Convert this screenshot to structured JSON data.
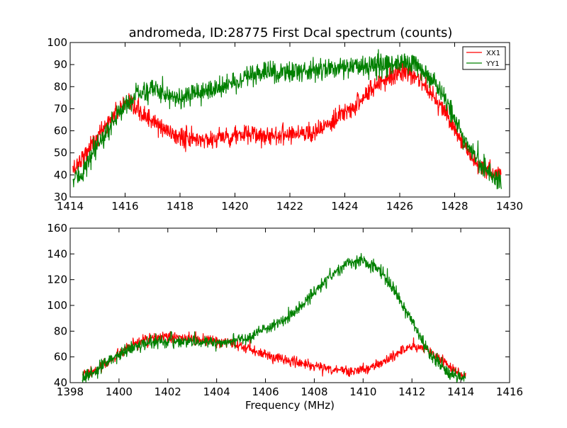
{
  "figure": {
    "title": "andromeda, ID:28775 First Dcal spectrum (counts)"
  },
  "chart_data": [
    {
      "type": "line",
      "title": "andromeda, ID:28775 First Dcal spectrum (counts)",
      "xlabel": "",
      "ylabel": "",
      "xlim": [
        1414,
        1430
      ],
      "ylim": [
        30,
        100
      ],
      "xticks": [
        "1414",
        "1416",
        "1418",
        "1420",
        "1422",
        "1424",
        "1426",
        "1428",
        "1430"
      ],
      "yticks": [
        "30",
        "40",
        "50",
        "60",
        "70",
        "80",
        "90",
        "100"
      ],
      "legend": {
        "position": "top-right",
        "entries": [
          "XX1",
          "YY1"
        ]
      },
      "grid": false,
      "series": [
        {
          "name": "XX1",
          "color": "#ff0000",
          "noise": 2.2,
          "x": [
            1414.1,
            1414.5,
            1415.0,
            1415.5,
            1416.0,
            1416.5,
            1417.0,
            1417.5,
            1418.0,
            1418.5,
            1419.0,
            1419.5,
            1420.0,
            1420.5,
            1421.0,
            1421.5,
            1422.0,
            1422.5,
            1423.0,
            1423.5,
            1424.0,
            1424.5,
            1425.0,
            1425.5,
            1426.0,
            1426.5,
            1427.0,
            1427.5,
            1428.0,
            1428.5,
            1429.0,
            1429.4,
            1429.7
          ],
          "y": [
            42,
            49,
            57,
            66,
            72,
            69,
            64,
            60,
            57,
            56,
            56,
            57,
            58,
            58,
            58,
            58,
            59,
            59,
            60,
            63,
            68,
            73,
            79,
            84,
            87,
            85,
            80,
            72,
            60,
            50,
            43,
            40,
            40
          ]
        },
        {
          "name": "YY1",
          "color": "#008000",
          "noise": 2.4,
          "x": [
            1414.1,
            1414.5,
            1415.0,
            1415.5,
            1416.0,
            1416.5,
            1417.0,
            1417.5,
            1418.0,
            1418.5,
            1419.0,
            1419.5,
            1420.0,
            1420.5,
            1421.0,
            1421.5,
            1422.0,
            1422.5,
            1423.0,
            1423.5,
            1424.0,
            1424.5,
            1425.0,
            1425.5,
            1426.0,
            1426.5,
            1427.0,
            1427.5,
            1428.0,
            1428.5,
            1429.0,
            1429.4,
            1429.7
          ],
          "y": [
            37,
            42,
            53,
            63,
            72,
            77,
            79,
            77,
            75,
            76,
            78,
            80,
            82,
            84,
            86,
            87,
            87,
            87,
            88,
            88,
            89,
            89,
            90,
            90,
            90,
            90,
            86,
            78,
            65,
            53,
            44,
            39,
            37
          ]
        }
      ]
    },
    {
      "type": "line",
      "title": "",
      "xlabel": "Frequency (MHz)",
      "ylabel": "",
      "xlim": [
        1398,
        1416
      ],
      "ylim": [
        40,
        160
      ],
      "xticks": [
        "1398",
        "1400",
        "1402",
        "1404",
        "1406",
        "1408",
        "1410",
        "1412",
        "1414",
        "1416"
      ],
      "yticks": [
        "40",
        "60",
        "80",
        "100",
        "120",
        "140",
        "160"
      ],
      "grid": false,
      "series": [
        {
          "name": "XX1",
          "color": "#ff0000",
          "noise": 2.0,
          "x": [
            1398.5,
            1399.0,
            1399.5,
            1400.0,
            1400.5,
            1401.0,
            1401.5,
            1402.0,
            1402.5,
            1403.0,
            1403.5,
            1404.0,
            1404.5,
            1405.0,
            1405.5,
            1406.0,
            1406.5,
            1407.0,
            1407.5,
            1408.0,
            1408.5,
            1409.0,
            1409.5,
            1410.0,
            1410.5,
            1411.0,
            1411.5,
            1412.0,
            1412.5,
            1413.0,
            1413.5,
            1414.0,
            1414.2
          ],
          "y": [
            46,
            49,
            55,
            62,
            68,
            73,
            75,
            75,
            75,
            74,
            73,
            72,
            70,
            68,
            65,
            62,
            59,
            57,
            55,
            53,
            51,
            50,
            49,
            50,
            53,
            58,
            64,
            68,
            67,
            61,
            53,
            47,
            45
          ]
        },
        {
          "name": "YY1",
          "color": "#008000",
          "noise": 2.4,
          "x": [
            1398.5,
            1399.0,
            1399.5,
            1400.0,
            1400.5,
            1401.0,
            1401.5,
            1402.0,
            1402.5,
            1403.0,
            1403.5,
            1404.0,
            1404.5,
            1405.0,
            1405.5,
            1406.0,
            1406.5,
            1407.0,
            1407.5,
            1408.0,
            1408.5,
            1409.0,
            1409.5,
            1410.0,
            1410.5,
            1411.0,
            1411.5,
            1412.0,
            1412.5,
            1413.0,
            1413.5,
            1414.0,
            1414.2
          ],
          "y": [
            44,
            48,
            55,
            62,
            67,
            70,
            72,
            72,
            72,
            72,
            71,
            71,
            72,
            74,
            77,
            81,
            86,
            92,
            100,
            110,
            120,
            128,
            133,
            134,
            130,
            120,
            105,
            88,
            70,
            56,
            48,
            44,
            43
          ]
        }
      ]
    }
  ]
}
